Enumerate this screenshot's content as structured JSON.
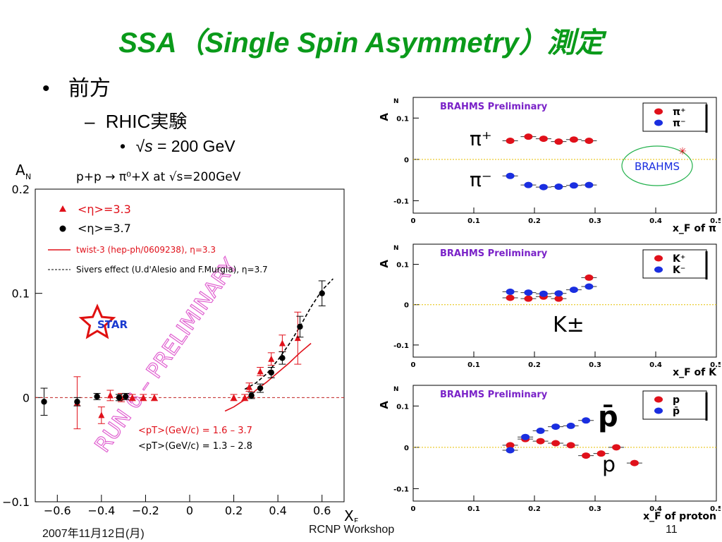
{
  "slide": {
    "title": "SSA（Single Spin Asymmetry）測定",
    "bullet1": "前方",
    "bullet2": "RHIC実験",
    "bullet3_sqrt": "√",
    "bullet3_s": "s",
    "bullet3_rest": " = 200 GeV",
    "bullet_marker": "•",
    "dash_marker": "–",
    "footer_date": "2007年11月12日(月)",
    "footer_center": "RCNP Workshop",
    "footer_page": "11"
  },
  "colors": {
    "title": "#0a9a1a",
    "red": "#e0101a",
    "blue": "#1a2ee0",
    "green": "#22b14c",
    "purple": "#7a22c8"
  },
  "chart_data": [
    {
      "id": "star",
      "type": "scatter",
      "ylabel": "A_N",
      "xlabel": "x_F",
      "title": "p+p → π⁰+X at √s=200GeV",
      "xlim": [
        -0.7,
        0.7
      ],
      "ylim": [
        -0.1,
        0.2
      ],
      "xticks": [
        "−0.6",
        "−0.4",
        "−0.2",
        "0",
        "0.2",
        "0.4",
        "0.6"
      ],
      "yticks": [
        "−0.1",
        "0",
        "0.1",
        "0.2"
      ],
      "legend": {
        "red": "<η>=3.3",
        "black": "<η>=3.7",
        "twist": "twist-3 (hep-ph/0609238), η=3.3",
        "sivers": "Sivers effect (U.d'Alesio and F.Murgia), η=3.7"
      },
      "logo_text": "STAR",
      "watermark": "RUN 6 – PRELIMINARY",
      "pt_red": "<pT>(GeV/c) =  1.6    –    3.7",
      "pt_black": "<pT>(GeV/c) =      1.3     –     2.8",
      "series": [
        {
          "name": "<η>=3.3",
          "color": "#e0101a",
          "marker": "triangle",
          "points": [
            {
              "x": -0.51,
              "y": -0.005,
              "err": 0.025
            },
            {
              "x": -0.4,
              "y": -0.017,
              "err": 0.008
            },
            {
              "x": -0.36,
              "y": 0.002,
              "err": 0.005
            },
            {
              "x": -0.31,
              "y": 0.0,
              "err": 0.004
            },
            {
              "x": -0.26,
              "y": 0.0,
              "err": 0.003
            },
            {
              "x": -0.21,
              "y": 0.0,
              "err": 0.003
            },
            {
              "x": -0.16,
              "y": 0.0,
              "err": 0.003
            },
            {
              "x": 0.2,
              "y": 0.0,
              "err": 0.003
            },
            {
              "x": 0.25,
              "y": 0.0,
              "err": 0.003
            },
            {
              "x": 0.27,
              "y": 0.01,
              "err": 0.004
            },
            {
              "x": 0.32,
              "y": 0.025,
              "err": 0.004
            },
            {
              "x": 0.37,
              "y": 0.037,
              "err": 0.006
            },
            {
              "x": 0.42,
              "y": 0.052,
              "err": 0.008
            },
            {
              "x": 0.49,
              "y": 0.057,
              "err": 0.025
            }
          ]
        },
        {
          "name": "<η>=3.7",
          "color": "#000000",
          "marker": "circle",
          "points": [
            {
              "x": -0.66,
              "y": -0.004,
              "err": 0.013
            },
            {
              "x": -0.51,
              "y": -0.004,
              "err": 0.004
            },
            {
              "x": -0.42,
              "y": 0.001,
              "err": 0.003
            },
            {
              "x": -0.32,
              "y": 0.0,
              "err": 0.003
            },
            {
              "x": -0.29,
              "y": 0.001,
              "err": 0.003
            },
            {
              "x": 0.28,
              "y": 0.002,
              "err": 0.003
            },
            {
              "x": 0.32,
              "y": 0.009,
              "err": 0.004
            },
            {
              "x": 0.37,
              "y": 0.024,
              "err": 0.005
            },
            {
              "x": 0.42,
              "y": 0.038,
              "err": 0.006
            },
            {
              "x": 0.5,
              "y": 0.068,
              "err": 0.01
            },
            {
              "x": 0.6,
              "y": 0.1,
              "err": 0.012
            }
          ]
        }
      ],
      "curves": [
        {
          "name": "twist-3",
          "color": "#e0101a",
          "style": "solid",
          "x": [
            0.16,
            0.2,
            0.25,
            0.3,
            0.35,
            0.4,
            0.45,
            0.5,
            0.55
          ],
          "y": [
            -0.013,
            -0.009,
            -0.002,
            0.007,
            0.015,
            0.024,
            0.033,
            0.043,
            0.052
          ]
        },
        {
          "name": "Sivers",
          "color": "#000000",
          "style": "dashed",
          "x": [
            0.25,
            0.3,
            0.35,
            0.4,
            0.45,
            0.5,
            0.55,
            0.6,
            0.65
          ],
          "y": [
            0.008,
            0.014,
            0.023,
            0.036,
            0.051,
            0.068,
            0.087,
            0.103,
            0.114
          ]
        }
      ]
    },
    {
      "id": "brahms-pi",
      "type": "scatter",
      "header": "BRAHMS Preliminary",
      "ylabel": "A_N",
      "xlabel": "x_F of π",
      "xlim": [
        0,
        0.5
      ],
      "ylim": [
        -0.13,
        0.15
      ],
      "xticks": [
        "0",
        "0.1",
        "0.2",
        "0.3",
        "0.4",
        "0.5"
      ],
      "yticks": [
        {
          "v": 0.1,
          "t": "0.1"
        },
        {
          "v": 0,
          "t": "0"
        },
        {
          "v": -0.1,
          "t": "-0.1"
        }
      ],
      "legend": [
        {
          "label": "π⁺",
          "color": "#e0101a"
        },
        {
          "label": "π⁻",
          "color": "#1a2ee0"
        }
      ],
      "annotations": [
        "π⁺",
        "π⁻"
      ],
      "badge": "BRAHMS",
      "series": [
        {
          "name": "π⁺",
          "color": "#e0101a",
          "points": [
            {
              "x": 0.16,
              "y": 0.045
            },
            {
              "x": 0.19,
              "y": 0.055
            },
            {
              "x": 0.215,
              "y": 0.05
            },
            {
              "x": 0.24,
              "y": 0.043
            },
            {
              "x": 0.265,
              "y": 0.048
            },
            {
              "x": 0.29,
              "y": 0.045
            }
          ]
        },
        {
          "name": "π⁻",
          "color": "#1a2ee0",
          "points": [
            {
              "x": 0.16,
              "y": -0.04
            },
            {
              "x": 0.19,
              "y": -0.062
            },
            {
              "x": 0.215,
              "y": -0.067
            },
            {
              "x": 0.24,
              "y": -0.066
            },
            {
              "x": 0.265,
              "y": -0.063
            },
            {
              "x": 0.29,
              "y": -0.062
            }
          ]
        }
      ]
    },
    {
      "id": "brahms-k",
      "type": "scatter",
      "header": "BRAHMS Preliminary",
      "ylabel": "A_N",
      "xlabel": "x_F of K",
      "xlim": [
        0,
        0.5
      ],
      "ylim": [
        -0.13,
        0.15
      ],
      "xticks": [
        "0",
        "0.1",
        "0.2",
        "0.3",
        "0.4",
        "0.5"
      ],
      "yticks": [
        {
          "v": 0.1,
          "t": "0.1"
        },
        {
          "v": 0,
          "t": "0"
        },
        {
          "v": -0.1,
          "t": "-0.1"
        }
      ],
      "legend": [
        {
          "label": "K⁺",
          "color": "#e0101a"
        },
        {
          "label": "K⁻",
          "color": "#1a2ee0"
        }
      ],
      "annotations": [
        "K±"
      ],
      "series": [
        {
          "name": "K⁺",
          "color": "#e0101a",
          "points": [
            {
              "x": 0.16,
              "y": 0.017
            },
            {
              "x": 0.19,
              "y": 0.015
            },
            {
              "x": 0.215,
              "y": 0.02
            },
            {
              "x": 0.24,
              "y": 0.015
            },
            {
              "x": 0.29,
              "y": 0.067
            }
          ]
        },
        {
          "name": "K⁻",
          "color": "#1a2ee0",
          "points": [
            {
              "x": 0.16,
              "y": 0.032
            },
            {
              "x": 0.19,
              "y": 0.03
            },
            {
              "x": 0.215,
              "y": 0.027
            },
            {
              "x": 0.24,
              "y": 0.028
            },
            {
              "x": 0.265,
              "y": 0.037
            },
            {
              "x": 0.29,
              "y": 0.045
            }
          ]
        }
      ]
    },
    {
      "id": "brahms-p",
      "type": "scatter",
      "header": "BRAHMS Preliminary",
      "ylabel": "A_N",
      "xlabel": "x_F of proton",
      "xlim": [
        0,
        0.5
      ],
      "ylim": [
        -0.13,
        0.15
      ],
      "xticks": [
        "0",
        "0.1",
        "0.2",
        "0.3",
        "0.4",
        "0.5"
      ],
      "yticks": [
        {
          "v": 0.1,
          "t": "0.1"
        },
        {
          "v": 0,
          "t": "0"
        },
        {
          "v": -0.1,
          "t": "-0.1"
        }
      ],
      "legend": [
        {
          "label": "p",
          "color": "#e0101a"
        },
        {
          "label": "p̄",
          "color": "#1a2ee0"
        }
      ],
      "annotations": [
        "p̄",
        "p"
      ],
      "series": [
        {
          "name": "p",
          "color": "#e0101a",
          "points": [
            {
              "x": 0.16,
              "y": 0.005
            },
            {
              "x": 0.185,
              "y": 0.02
            },
            {
              "x": 0.21,
              "y": 0.015
            },
            {
              "x": 0.235,
              "y": 0.01
            },
            {
              "x": 0.26,
              "y": 0.005
            },
            {
              "x": 0.285,
              "y": -0.02
            },
            {
              "x": 0.31,
              "y": -0.015
            },
            {
              "x": 0.335,
              "y": 0.0
            },
            {
              "x": 0.365,
              "y": -0.038
            }
          ]
        },
        {
          "name": "p̄",
          "color": "#1a2ee0",
          "points": [
            {
              "x": 0.16,
              "y": -0.007
            },
            {
              "x": 0.185,
              "y": 0.025
            },
            {
              "x": 0.21,
              "y": 0.04
            },
            {
              "x": 0.235,
              "y": 0.05
            },
            {
              "x": 0.26,
              "y": 0.052
            },
            {
              "x": 0.285,
              "y": 0.065
            }
          ]
        }
      ]
    }
  ]
}
